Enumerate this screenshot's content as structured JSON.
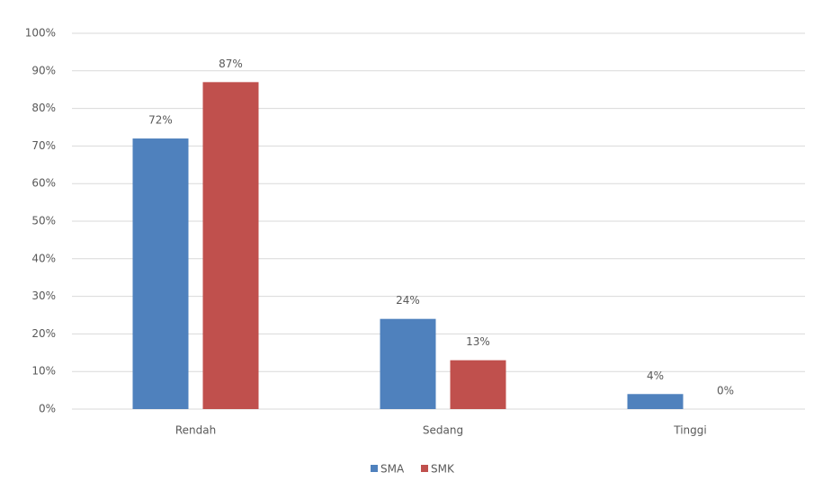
{
  "chart_data": {
    "type": "bar",
    "categories": [
      "Rendah",
      "Sedang",
      "Tinggi"
    ],
    "series": [
      {
        "name": "SMA",
        "color": "#4f81bd",
        "values": [
          72,
          24,
          4
        ],
        "value_labels": [
          "72%",
          "24%",
          "4%"
        ]
      },
      {
        "name": "SMK",
        "color": "#c0504d",
        "values": [
          87,
          13,
          0
        ],
        "value_labels": [
          "87%",
          "13%",
          "0%"
        ]
      }
    ],
    "ylim": [
      0,
      100
    ],
    "yticks": [
      {
        "value": 0,
        "label": "0%"
      },
      {
        "value": 10,
        "label": "10%"
      },
      {
        "value": 20,
        "label": "20%"
      },
      {
        "value": 30,
        "label": "30%"
      },
      {
        "value": 40,
        "label": "40%"
      },
      {
        "value": 50,
        "label": "50%"
      },
      {
        "value": 60,
        "label": "60%"
      },
      {
        "value": 70,
        "label": "70%"
      },
      {
        "value": 80,
        "label": "80%"
      },
      {
        "value": 90,
        "label": "90%"
      },
      {
        "value": 100,
        "label": "100%"
      }
    ],
    "grid": true,
    "legend": "bottom"
  }
}
